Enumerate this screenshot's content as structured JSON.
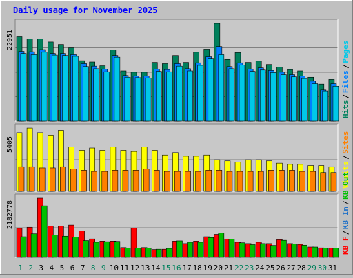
{
  "chart_data": {
    "type": "bar",
    "title": "Daily usage for November 2025",
    "colors": {
      "hits": "#00805c",
      "files": "#0080ff",
      "pages": "#00c8e8",
      "visits": "#ffff00",
      "sites": "#ff8000",
      "kb_out": "#00c000",
      "kb_in": "#1e70c8",
      "kb_f": "#ff0000",
      "title": "#0000ff",
      "weekend_label": "#00805c",
      "background": "#c0c0c0",
      "plot_bg": "#c8c8c8"
    },
    "categories": [
      "1",
      "2",
      "3",
      "4",
      "5",
      "6",
      "7",
      "8",
      "9",
      "10",
      "11",
      "12",
      "13",
      "14",
      "15",
      "16",
      "17",
      "18",
      "19",
      "20",
      "21",
      "22",
      "23",
      "24",
      "25",
      "26",
      "27",
      "28",
      "29",
      "30",
      "31"
    ],
    "weekend_days": [
      "1",
      "2",
      "8",
      "9",
      "15",
      "16",
      "22",
      "23",
      "29",
      "30"
    ],
    "panels": [
      {
        "name": "hits-files-pages",
        "ymax_label": "22951",
        "ymax": 22951,
        "legend": [
          "Hits",
          "Files",
          "Pages"
        ],
        "series": [
          {
            "name": "Hits",
            "values": [
              19800,
              19300,
              19300,
              18600,
              18000,
              17200,
              14200,
              13900,
              13000,
              16700,
              11800,
              11500,
              11500,
              13800,
              13500,
              15400,
              13800,
              16200,
              16900,
              22950,
              14500,
              16100,
              13800,
              14100,
              13300,
              12700,
              12100,
              11800,
              10300,
              8700,
              9800
            ]
          },
          {
            "name": "Files",
            "values": [
              16400,
              16300,
              16800,
              15900,
              15900,
              15600,
              13500,
              12900,
              12200,
              15400,
              10700,
              10600,
              10600,
              12200,
              12100,
              13500,
              12300,
              13700,
              15100,
              17500,
              12800,
              13700,
              12200,
              12500,
              11900,
              11500,
              10900,
              10600,
              9400,
              7300,
              8800
            ]
          },
          {
            "name": "Pages",
            "values": [
              15900,
              15600,
              16200,
              15500,
              15400,
              15200,
              12800,
              12300,
              11600,
              15000,
              10300,
              10200,
              10100,
              11700,
              11600,
              12900,
              11800,
              13100,
              14600,
              15600,
              12300,
              13200,
              11700,
              12000,
              11400,
              10900,
              10400,
              10000,
              8800,
              7100,
              8200
            ]
          }
        ]
      },
      {
        "name": "visits-sites",
        "ymax_label": "5405",
        "ymax": 5405,
        "legend": [
          "Visits",
          "Sites"
        ],
        "series": [
          {
            "name": "Visits",
            "values": [
              5000,
              5400,
              5000,
              4800,
              5200,
              3800,
              3500,
              3700,
              3500,
              3800,
              3500,
              3400,
              3800,
              3500,
              3100,
              3300,
              3000,
              3000,
              3100,
              2700,
              2600,
              2500,
              2700,
              2700,
              2600,
              2400,
              2300,
              2300,
              2200,
              2200,
              2100
            ]
          },
          {
            "name": "Sites",
            "values": [
              2100,
              2100,
              2000,
              2000,
              2100,
              1900,
              1800,
              1700,
              1700,
              1800,
              1800,
              1800,
              1900,
              1800,
              1700,
              1700,
              1700,
              1700,
              1800,
              1800,
              1700,
              1700,
              1700,
              1700,
              1800,
              1800,
              1800,
              1700,
              1700,
              1600,
              1600
            ]
          }
        ]
      },
      {
        "name": "kbytes",
        "ymax_label": "2182778",
        "ymax": 2182778,
        "legend": [
          "KB F",
          "KB In",
          "KB Out"
        ],
        "series": [
          {
            "name": "KB F",
            "values": [
              1070000,
              1110000,
              2182778,
              1150000,
              1150000,
              1190000,
              980000,
              680000,
              600000,
              600000,
              360000,
              1080000,
              360000,
              290000,
              300000,
              600000,
              510000,
              600000,
              760000,
              850000,
              670000,
              560000,
              510000,
              560000,
              510000,
              650000,
              510000,
              480000,
              380000,
              350000,
              340000
            ]
          },
          {
            "name": "KB In",
            "values": [
              0,
              0,
              0,
              0,
              0,
              0,
              0,
              0,
              0,
              0,
              0,
              0,
              0,
              0,
              0,
              0,
              0,
              0,
              0,
              0,
              0,
              0,
              0,
              0,
              0,
              0,
              0,
              0,
              0,
              0,
              0
            ]
          },
          {
            "name": "KB Out",
            "values": [
              760000,
              870000,
              1900000,
              830000,
              780000,
              750000,
              620000,
              560000,
              580000,
              590000,
              340000,
              340000,
              340000,
              300000,
              330000,
              610000,
              560000,
              560000,
              730000,
              900000,
              670000,
              540000,
              470000,
              510000,
              440000,
              630000,
              500000,
              450000,
              380000,
              340000,
              340000
            ]
          }
        ]
      }
    ],
    "grid": true,
    "legend_placement": "right"
  }
}
